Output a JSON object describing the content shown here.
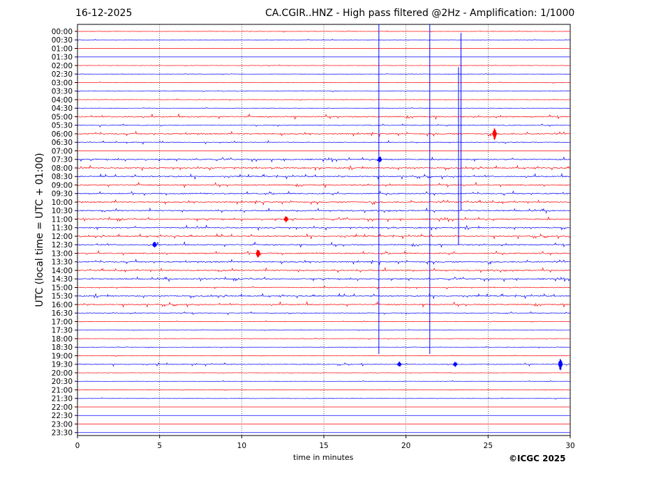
{
  "header": {
    "date": "16-12-2025",
    "title": "CA.CGIR..HNZ - High pass filtered @2Hz - Amplification: 1/1000"
  },
  "footer": {
    "copyright": "©ICGC 2025"
  },
  "chart_data": {
    "type": "line",
    "title": "CA.CGIR..HNZ - High pass filtered @2Hz - Amplification: 1/1000",
    "xlabel": "time in minutes",
    "ylabel": "UTC (local time = UTC + 01:00)",
    "xlim": [
      0,
      30
    ],
    "x_ticks": [
      0,
      5,
      10,
      15,
      20,
      25,
      30
    ],
    "x_tick_labels": [
      "0",
      "5",
      "10",
      "15",
      "20",
      "25",
      "30"
    ],
    "grid": "vertical dotted at 5-minute intervals",
    "row_labels": [
      "00:00",
      "00:30",
      "01:00",
      "01:30",
      "02:00",
      "02:30",
      "03:00",
      "03:30",
      "04:00",
      "04:30",
      "05:00",
      "05:30",
      "06:00",
      "06:30",
      "07:00",
      "07:30",
      "08:00",
      "08:30",
      "09:00",
      "09:30",
      "10:00",
      "10:30",
      "11:00",
      "11:30",
      "12:00",
      "12:30",
      "13:00",
      "13:30",
      "14:00",
      "14:30",
      "15:00",
      "15:30",
      "16:00",
      "16:30",
      "17:00",
      "17:30",
      "18:00",
      "18:30",
      "19:00",
      "19:30",
      "20:00",
      "20:30",
      "21:00",
      "21:30",
      "22:00",
      "22:30",
      "23:00",
      "23:30"
    ],
    "row_colors": [
      "#ff0000",
      "#0000ff"
    ],
    "noise_level": [
      1,
      1,
      0,
      0,
      1,
      1,
      1,
      1,
      1,
      1,
      3,
      2,
      3,
      2,
      0,
      3,
      3,
      3,
      3,
      3,
      3,
      3,
      3,
      3,
      3,
      3,
      3,
      3,
      3,
      3,
      2,
      3,
      3,
      2,
      1,
      1,
      1,
      1,
      1,
      2,
      1,
      1,
      1,
      1,
      0,
      0,
      0,
      0
    ],
    "spikes": [
      {
        "row": 12,
        "x": 25.4,
        "amp": 9
      },
      {
        "row": 15,
        "x": 18.4,
        "amp": 5
      },
      {
        "row": 22,
        "x": 12.7,
        "amp": 5
      },
      {
        "row": 25,
        "x": 4.7,
        "amp": 5
      },
      {
        "row": 26,
        "x": 11.0,
        "amp": 7
      },
      {
        "row": 39,
        "x": 19.6,
        "amp": 4
      },
      {
        "row": 39,
        "x": 23.0,
        "amp": 4
      },
      {
        "row": 39,
        "x": 29.4,
        "amp": 9
      }
    ],
    "transients": [
      {
        "x": 18.35,
        "row_start": 0,
        "row_end": 37.8
      },
      {
        "x": 21.45,
        "row_start": 0,
        "row_end": 37.8
      },
      {
        "x": 23.2,
        "row_start": 5,
        "row_end": 25
      },
      {
        "x": 23.35,
        "row_start": 1,
        "row_end": 21
      }
    ]
  }
}
